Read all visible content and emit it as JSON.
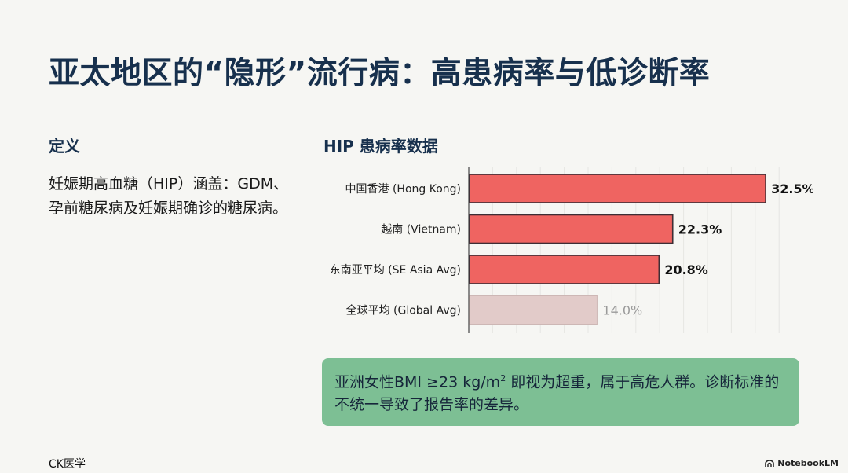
{
  "slide": {
    "title": "亚太地区的“隐形”流行病：高患病率与低诊断率"
  },
  "definition": {
    "heading": "定义",
    "text": "妊娠期高血糖（HIP）涵盖：GDM、孕前糖尿病及妊娠期确诊的糖尿病。"
  },
  "chart_heading": "HIP 患病率数据",
  "chart_data": {
    "type": "bar",
    "orientation": "horizontal",
    "title": "HIP 患病率数据",
    "categories": [
      "中国香港 (Hong Kong)",
      "越南 (Vietnam)",
      "东南亚平均 (SE Asia Avg)",
      "全球平均 (Global Avg)"
    ],
    "values": [
      32.5,
      22.3,
      20.8,
      14.0
    ],
    "value_labels": [
      "32.5%",
      "22.3%",
      "20.8%",
      "14.0%"
    ],
    "unit": "%",
    "xlim": [
      0,
      35
    ],
    "grid": true,
    "colors": [
      "#ef6461",
      "#ef6461",
      "#ef6461",
      "#e2cbc9"
    ],
    "bar_edge_color": "#3d2e35",
    "muted_label_color": "#9a9a9a"
  },
  "note": {
    "text_before_sup": "亚洲女性BMI ≥23 kg/m",
    "sup": "2",
    "text_after_sup": " 即视为超重，属于高危人群。诊断标准的不统一导致了报告率的差异。"
  },
  "footer": {
    "source": "CK医学",
    "brand": "NotebookLM"
  },
  "colors": {
    "background": "#f6f6f3",
    "title": "#17304d",
    "note_background": "#7dbf94"
  }
}
